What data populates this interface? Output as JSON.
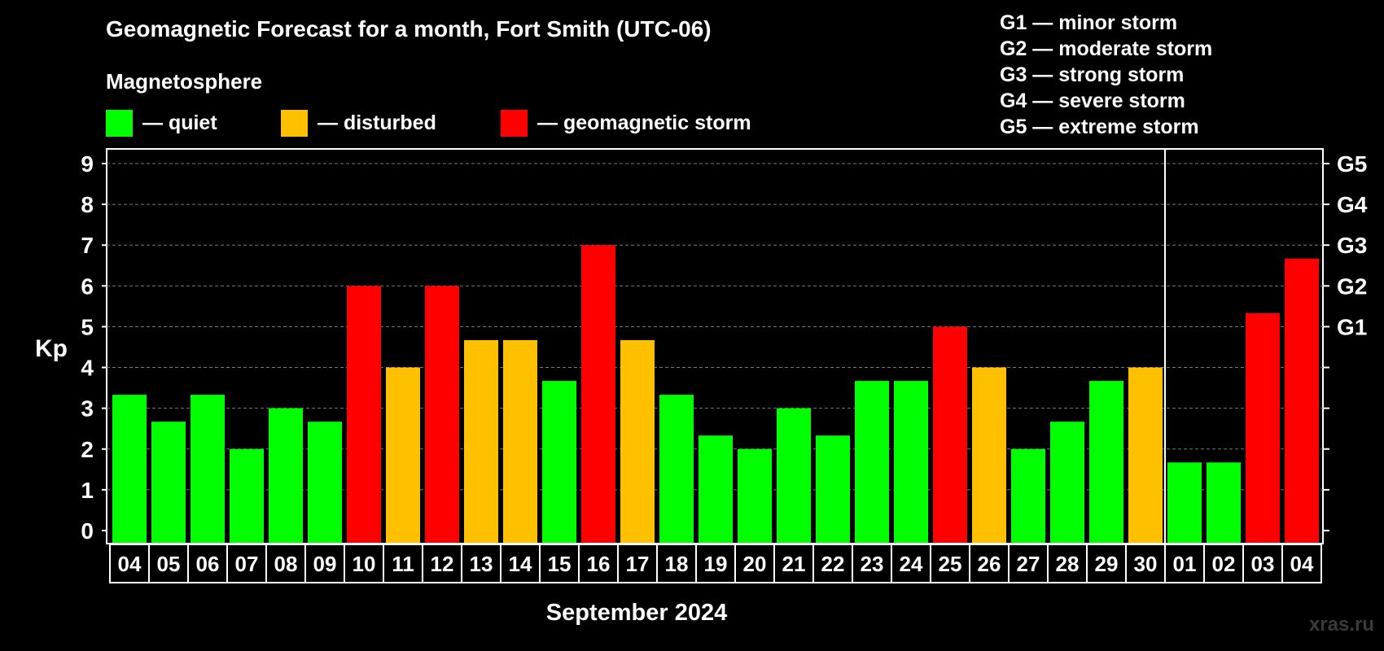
{
  "title": "Geomagnetic Forecast for a month, Fort Smith (UTC-06)",
  "legend": {
    "heading": "Magnetosphere",
    "items": [
      {
        "label": "— quiet",
        "color": "#00ff00"
      },
      {
        "label": "— disturbed",
        "color": "#ffc000"
      },
      {
        "label": "— geomagnetic storm",
        "color": "#ff0000"
      }
    ]
  },
  "storm_levels": [
    "G1 — minor storm",
    "G2 — moderate storm",
    "G3 — strong storm",
    "G4 — severe storm",
    "G5 — extreme storm"
  ],
  "watermark": "xras.ru",
  "chart_data": {
    "type": "bar",
    "ylabel": "Kp",
    "xlabel": "September 2024",
    "ylim": [
      0,
      9
    ],
    "yticks": [
      "0",
      "1",
      "2",
      "3",
      "4",
      "5",
      "6",
      "7",
      "8",
      "9"
    ],
    "right_axis_labels": [
      {
        "kp": 5,
        "label": "G1"
      },
      {
        "kp": 6,
        "label": "G2"
      },
      {
        "kp": 7,
        "label": "G3"
      },
      {
        "kp": 8,
        "label": "G4"
      },
      {
        "kp": 9,
        "label": "G5"
      }
    ],
    "grid": true,
    "month_divider_after_index": 26,
    "categories": [
      "04",
      "05",
      "06",
      "07",
      "08",
      "09",
      "10",
      "11",
      "12",
      "13",
      "14",
      "15",
      "16",
      "17",
      "18",
      "19",
      "20",
      "21",
      "22",
      "23",
      "24",
      "25",
      "26",
      "27",
      "28",
      "29",
      "30",
      "01",
      "02",
      "03",
      "04"
    ],
    "values": [
      3.33,
      2.67,
      3.33,
      2.0,
      3.0,
      2.67,
      6.0,
      4.0,
      6.0,
      4.67,
      4.67,
      3.67,
      7.0,
      4.67,
      3.33,
      2.33,
      2.0,
      3.0,
      2.33,
      3.67,
      3.67,
      5.0,
      4.0,
      2.0,
      2.67,
      3.67,
      4.0,
      1.67,
      1.67,
      5.33,
      6.67
    ],
    "levels": [
      "quiet",
      "quiet",
      "quiet",
      "quiet",
      "quiet",
      "quiet",
      "storm",
      "disturbed",
      "storm",
      "disturbed",
      "disturbed",
      "quiet",
      "storm",
      "disturbed",
      "quiet",
      "quiet",
      "quiet",
      "quiet",
      "quiet",
      "quiet",
      "quiet",
      "storm",
      "disturbed",
      "quiet",
      "quiet",
      "quiet",
      "disturbed",
      "quiet",
      "quiet",
      "storm",
      "storm"
    ],
    "level_colors": {
      "quiet": "#00ff00",
      "disturbed": "#ffc000",
      "storm": "#ff0000"
    }
  }
}
